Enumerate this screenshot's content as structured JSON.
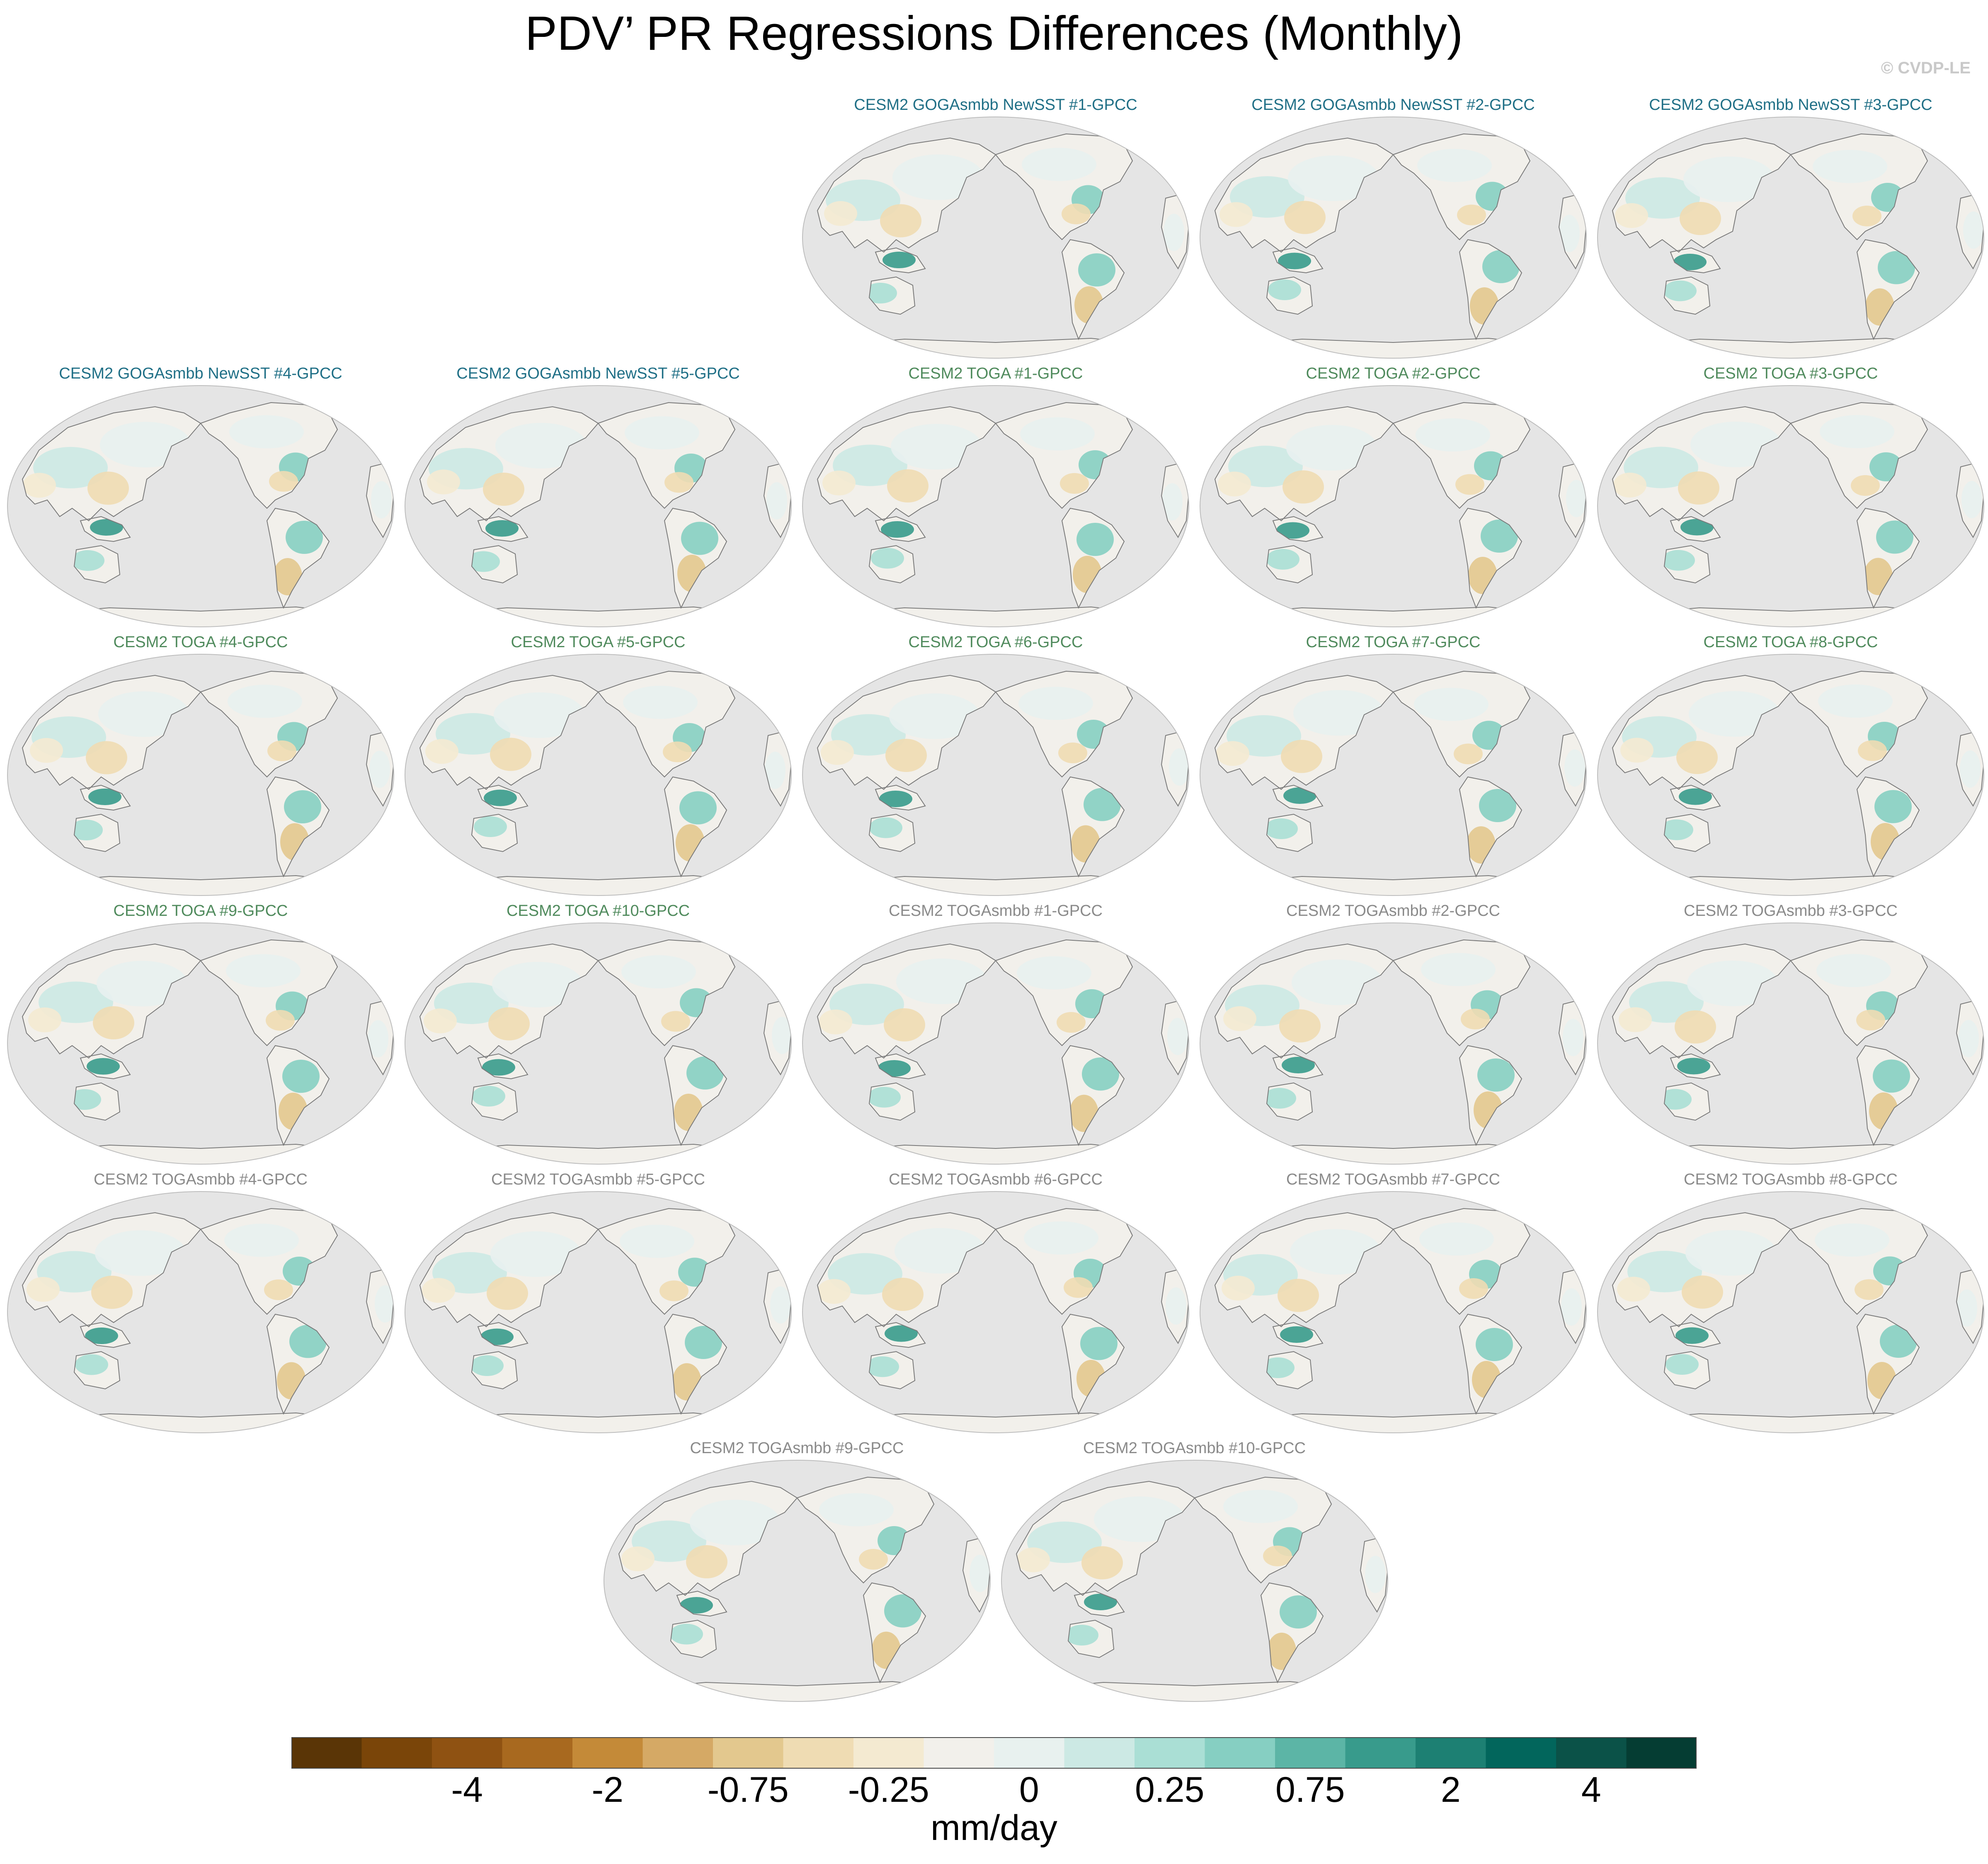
{
  "title": "PDV’ PR Regressions Differences (Monthly)",
  "watermark": "© CVDP-LE",
  "colors": {
    "group_goga": "#1f6f86",
    "group_toga": "#4f8a5c",
    "group_togasmbb": "#8a8a8a",
    "ocean": "#e5e5e5",
    "coast": "#7a7a7a"
  },
  "panels": [
    {
      "label": "CESM2 GOGAsmbb NewSST #1-GPCC",
      "group": "goga",
      "row": 0,
      "col": 2
    },
    {
      "label": "CESM2 GOGAsmbb NewSST #2-GPCC",
      "group": "goga",
      "row": 0,
      "col": 3
    },
    {
      "label": "CESM2 GOGAsmbb NewSST #3-GPCC",
      "group": "goga",
      "row": 0,
      "col": 4
    },
    {
      "label": "CESM2 GOGAsmbb NewSST #4-GPCC",
      "group": "goga",
      "row": 1,
      "col": 0
    },
    {
      "label": "CESM2 GOGAsmbb NewSST #5-GPCC",
      "group": "goga",
      "row": 1,
      "col": 1
    },
    {
      "label": "CESM2 TOGA #1-GPCC",
      "group": "toga",
      "row": 1,
      "col": 2
    },
    {
      "label": "CESM2 TOGA #2-GPCC",
      "group": "toga",
      "row": 1,
      "col": 3
    },
    {
      "label": "CESM2 TOGA #3-GPCC",
      "group": "toga",
      "row": 1,
      "col": 4
    },
    {
      "label": "CESM2 TOGA #4-GPCC",
      "group": "toga",
      "row": 2,
      "col": 0
    },
    {
      "label": "CESM2 TOGA #5-GPCC",
      "group": "toga",
      "row": 2,
      "col": 1
    },
    {
      "label": "CESM2 TOGA #6-GPCC",
      "group": "toga",
      "row": 2,
      "col": 2
    },
    {
      "label": "CESM2 TOGA #7-GPCC",
      "group": "toga",
      "row": 2,
      "col": 3
    },
    {
      "label": "CESM2 TOGA #8-GPCC",
      "group": "toga",
      "row": 2,
      "col": 4
    },
    {
      "label": "CESM2 TOGA #9-GPCC",
      "group": "toga",
      "row": 3,
      "col": 0
    },
    {
      "label": "CESM2 TOGA #10-GPCC",
      "group": "toga",
      "row": 3,
      "col": 1
    },
    {
      "label": "CESM2 TOGAsmbb #1-GPCC",
      "group": "togasmbb",
      "row": 3,
      "col": 2
    },
    {
      "label": "CESM2 TOGAsmbb #2-GPCC",
      "group": "togasmbb",
      "row": 3,
      "col": 3
    },
    {
      "label": "CESM2 TOGAsmbb #3-GPCC",
      "group": "togasmbb",
      "row": 3,
      "col": 4
    },
    {
      "label": "CESM2 TOGAsmbb #4-GPCC",
      "group": "togasmbb",
      "row": 4,
      "col": 0
    },
    {
      "label": "CESM2 TOGAsmbb #5-GPCC",
      "group": "togasmbb",
      "row": 4,
      "col": 1
    },
    {
      "label": "CESM2 TOGAsmbb #6-GPCC",
      "group": "togasmbb",
      "row": 4,
      "col": 2
    },
    {
      "label": "CESM2 TOGAsmbb #7-GPCC",
      "group": "togasmbb",
      "row": 4,
      "col": 3
    },
    {
      "label": "CESM2 TOGAsmbb #8-GPCC",
      "group": "togasmbb",
      "row": 4,
      "col": 4
    },
    {
      "label": "CESM2 TOGAsmbb #9-GPCC",
      "group": "togasmbb",
      "row": 5,
      "col": 1.5
    },
    {
      "label": "CESM2 TOGAsmbb #10-GPCC",
      "group": "togasmbb",
      "row": 5,
      "col": 2.5
    }
  ],
  "colorbar": {
    "units": "mm/day",
    "colors": [
      "#5a3506",
      "#7a4509",
      "#8f5212",
      "#a8691f",
      "#c48a38",
      "#d5a965",
      "#e3c88e",
      "#efdcb3",
      "#f4ead1",
      "#f2f0eb",
      "#e8f1ef",
      "#cce9e4",
      "#aadfd5",
      "#86cfc2",
      "#5cb5a6",
      "#389b8c",
      "#1d8073",
      "#02665c",
      "#0b5248",
      "#053d33"
    ],
    "tick_labels": [
      "-4",
      "-2",
      "-0.75",
      "-0.25",
      "0",
      "0.25",
      "0.75",
      "2",
      "4"
    ],
    "tick_boundary_index": [
      2,
      4,
      6,
      8,
      10,
      12,
      14,
      16,
      18
    ]
  }
}
